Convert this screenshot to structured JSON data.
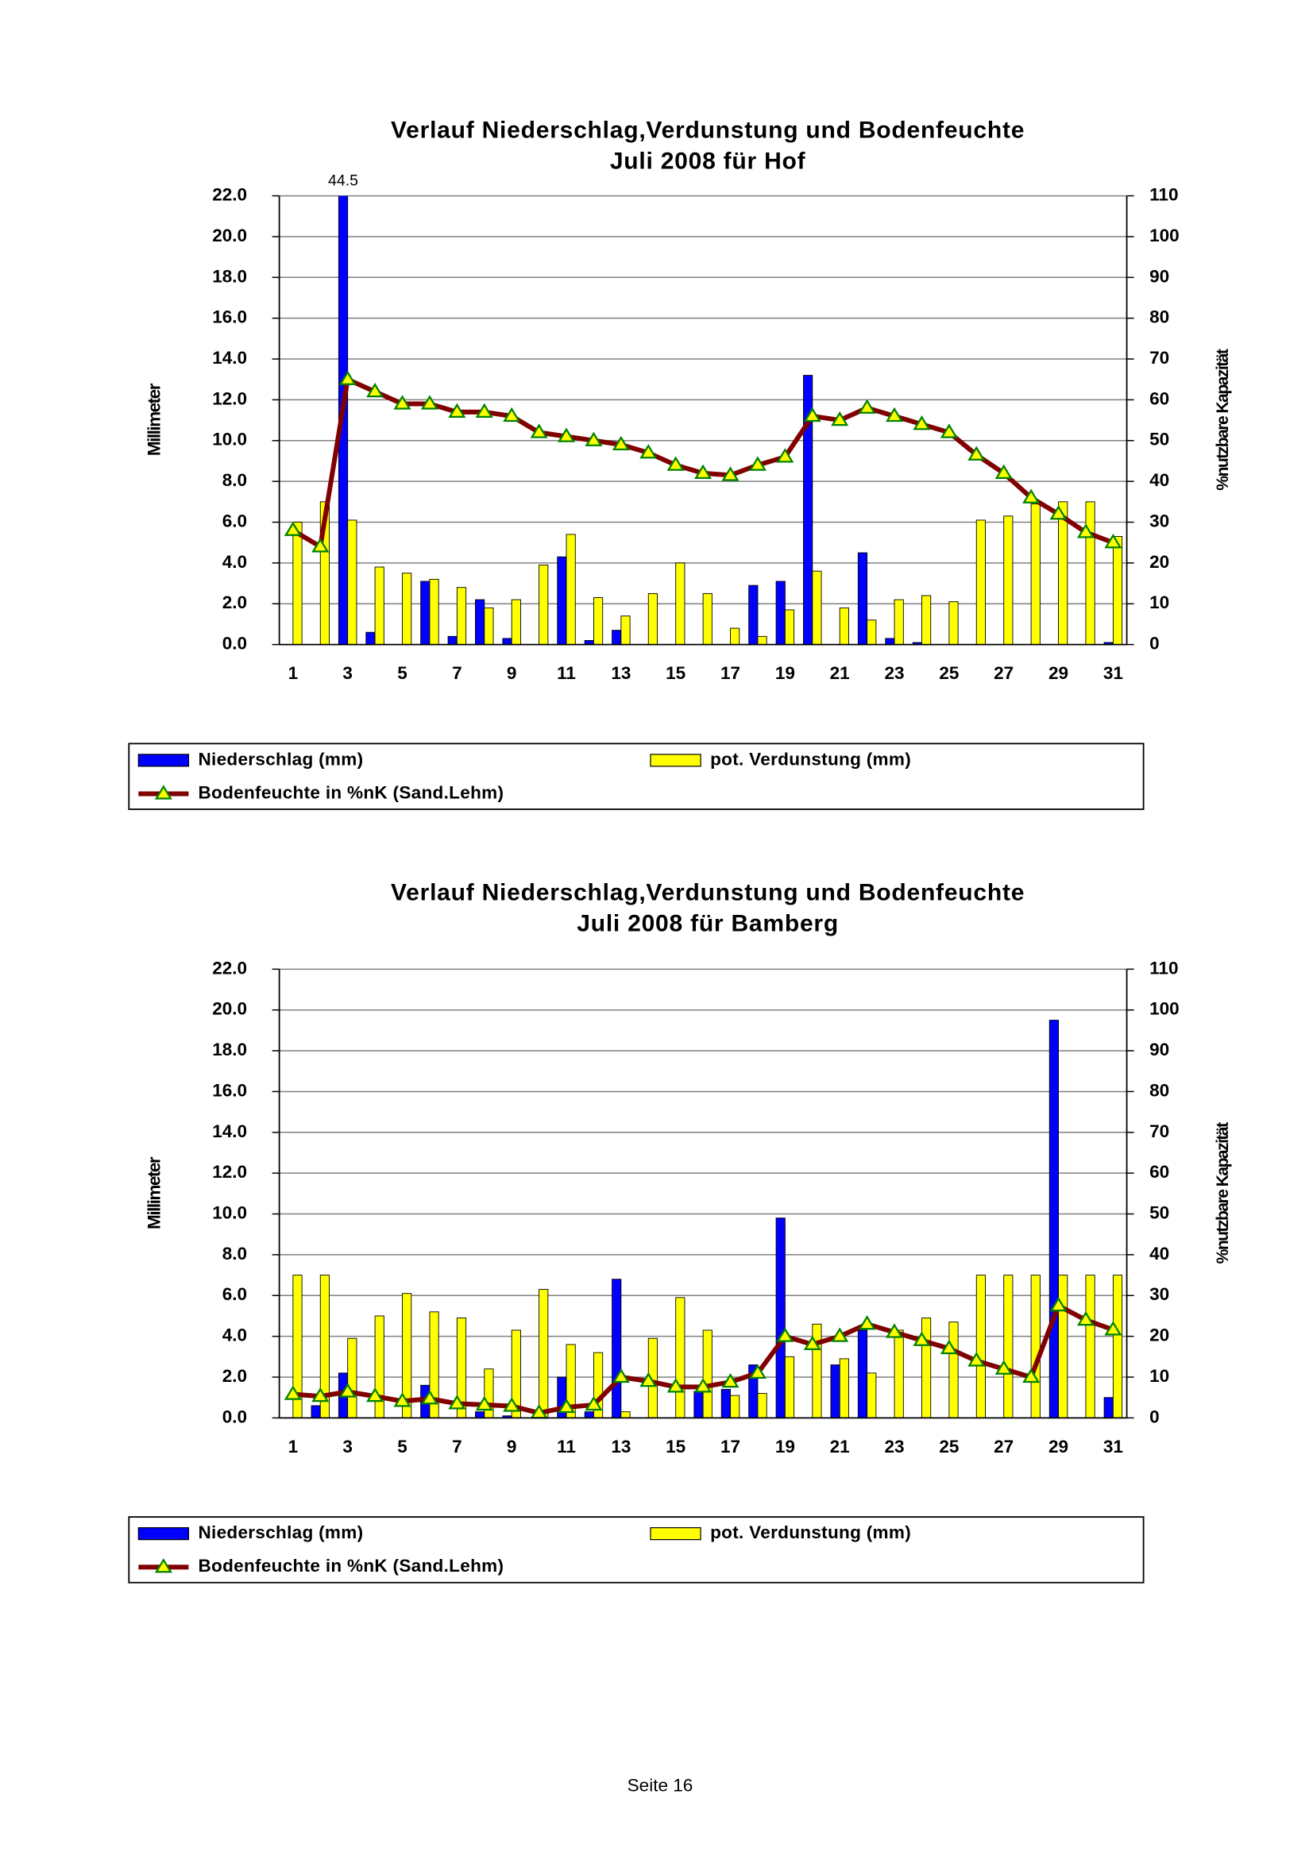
{
  "chart_data": [
    {
      "type": "bar",
      "title": "Verlauf Niederschlag,Verdunstung und Bodenfeuchte",
      "subtitle": "Juli 2008 für Hof",
      "y_label": "Millimeter",
      "y2_label": "%nutzbare Kapazität",
      "categories": [
        1,
        null,
        3,
        null,
        5,
        null,
        7,
        null,
        9,
        null,
        11,
        null,
        13,
        null,
        15,
        null,
        17,
        null,
        19,
        null,
        21,
        null,
        23,
        null,
        25,
        null,
        27,
        null,
        29,
        null,
        31
      ],
      "ylim": [
        0,
        22
      ],
      "yticks": [
        {
          "value": 0,
          "label": "0.0"
        },
        {
          "value": 2,
          "label": "2.0"
        },
        {
          "value": 4,
          "label": "4.0"
        },
        {
          "value": 6,
          "label": "6.0"
        },
        {
          "value": 8,
          "label": "8.0"
        },
        {
          "value": 10,
          "label": "10.0"
        },
        {
          "value": 12,
          "label": "12.0"
        },
        {
          "value": 14,
          "label": "14.0"
        },
        {
          "value": 16,
          "label": "16.0"
        },
        {
          "value": 18,
          "label": "18.0"
        },
        {
          "value": 20,
          "label": "20.0"
        },
        {
          "value": 22,
          "label": "22.0"
        }
      ],
      "y2lim": [
        0,
        110
      ],
      "y2ticks": [
        0,
        10,
        20,
        30,
        40,
        50,
        60,
        70,
        80,
        90,
        100,
        110
      ],
      "grid": true,
      "series": [
        {
          "name": "Niederschlag (mm)",
          "color": "#0000ff",
          "values": [
            0,
            0,
            44.5,
            0.6,
            0,
            3.1,
            0.4,
            2.2,
            0.3,
            0,
            4.3,
            0.2,
            0.7,
            0,
            0,
            0,
            0,
            2.9,
            3.1,
            13.2,
            0,
            4.5,
            0.3,
            0.1,
            0,
            0,
            0,
            0,
            0,
            0,
            0.1
          ]
        },
        {
          "name": "pot. Verdunstung (mm)",
          "color": "#ffff00",
          "values": [
            6.0,
            7.0,
            6.1,
            3.8,
            3.5,
            3.2,
            2.8,
            1.8,
            2.2,
            3.9,
            5.4,
            2.3,
            1.4,
            2.5,
            4.0,
            2.5,
            0.8,
            0.4,
            1.7,
            3.6,
            1.8,
            1.2,
            2.2,
            2.4,
            2.1,
            6.1,
            6.3,
            6.9,
            7.0,
            7.0,
            5.3
          ]
        },
        {
          "name": "Bodenfeuchte in %nK (Sand.Lehm)",
          "color": "#800000",
          "type": "line",
          "axis": "y2",
          "values": [
            28,
            24,
            65,
            62,
            59,
            59,
            57,
            57,
            56,
            52,
            51,
            50,
            49,
            47,
            44,
            42,
            41.5,
            44,
            46,
            56,
            55,
            58,
            56,
            54,
            52,
            46.5,
            42,
            36,
            32,
            27.5,
            25
          ]
        }
      ]
    },
    {
      "type": "bar",
      "title": "Verlauf Niederschlag,Verdunstung und Bodenfeuchte",
      "subtitle": "Juli 2008 für Bamberg",
      "y_label": "Millimeter",
      "y2_label": "%nutzbare Kapazität",
      "categories": [
        1,
        null,
        3,
        null,
        5,
        null,
        7,
        null,
        9,
        null,
        11,
        null,
        13,
        null,
        15,
        null,
        17,
        null,
        19,
        null,
        21,
        null,
        23,
        null,
        25,
        null,
        27,
        null,
        29,
        null,
        31
      ],
      "ylim": [
        0,
        22
      ],
      "yticks": [
        {
          "value": 0,
          "label": "0.0"
        },
        {
          "value": 2,
          "label": "2.0"
        },
        {
          "value": 4,
          "label": "4.0"
        },
        {
          "value": 6,
          "label": "6.0"
        },
        {
          "value": 8,
          "label": "8.0"
        },
        {
          "value": 10,
          "label": "10.0"
        },
        {
          "value": 12,
          "label": "12.0"
        },
        {
          "value": 14,
          "label": "14.0"
        },
        {
          "value": 16,
          "label": "16.0"
        },
        {
          "value": 18,
          "label": "18.0"
        },
        {
          "value": 20,
          "label": "20.0"
        },
        {
          "value": 22,
          "label": "22.0"
        }
      ],
      "y2lim": [
        0,
        110
      ],
      "y2ticks": [
        0,
        10,
        20,
        30,
        40,
        50,
        60,
        70,
        80,
        90,
        100,
        110
      ],
      "grid": true,
      "series": [
        {
          "name": "Niederschlag (mm)",
          "color": "#0000ff",
          "values": [
            0,
            0.6,
            2.2,
            0,
            0,
            1.6,
            0,
            0.3,
            0.1,
            0,
            2.0,
            0.3,
            6.8,
            0,
            0,
            1.3,
            1.4,
            2.6,
            9.8,
            0,
            2.6,
            4.3,
            0,
            0,
            0,
            0,
            0,
            0,
            19.5,
            0,
            1.0
          ]
        },
        {
          "name": "pot. Verdunstung (mm)",
          "color": "#ffff00",
          "values": [
            7.0,
            7.0,
            3.9,
            5.0,
            6.1,
            5.2,
            4.9,
            2.4,
            4.3,
            6.3,
            3.6,
            3.2,
            0.3,
            3.9,
            5.9,
            4.3,
            1.1,
            1.2,
            3.0,
            4.6,
            2.9,
            2.2,
            4.3,
            4.9,
            4.7,
            7.0,
            7.0,
            7.0,
            7.0,
            7.0,
            7.0
          ]
        },
        {
          "name": "Bodenfeuchte in %nK (Sand.Lehm)",
          "color": "#800000",
          "type": "line",
          "axis": "y2",
          "values": [
            5.8,
            5.3,
            6.4,
            5.3,
            4.1,
            4.7,
            3.5,
            3.2,
            2.9,
            1.2,
            2.6,
            3.2,
            10,
            9,
            7.6,
            7.6,
            8.8,
            11,
            20,
            18,
            20,
            23,
            21,
            19,
            17,
            14,
            12,
            10,
            27.5,
            24,
            21.6
          ]
        }
      ]
    }
  ],
  "footer": "Seite 16"
}
